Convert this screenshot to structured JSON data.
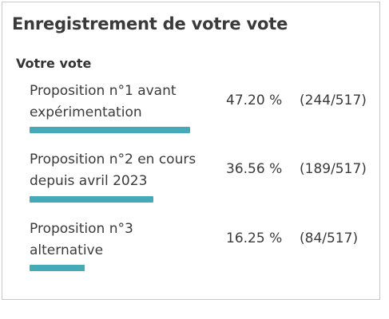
{
  "panel": {
    "title": "Enregistrement de votre vote",
    "section_title": "Votre vote"
  },
  "accent_color": "#45a9b8",
  "options": [
    {
      "label": "Proposition n°1 avant expérimentation",
      "percent_text": "47.20 %",
      "count_text": "(244/517)",
      "share": 0.472
    },
    {
      "label": "Proposition n°2 en cours depuis avril 2023",
      "percent_text": "36.56 %",
      "count_text": "(189/517)",
      "share": 0.3656
    },
    {
      "label": "Proposition n°3 alternative",
      "percent_text": "16.25 %",
      "count_text": "(84/517)",
      "share": 0.1625
    }
  ]
}
